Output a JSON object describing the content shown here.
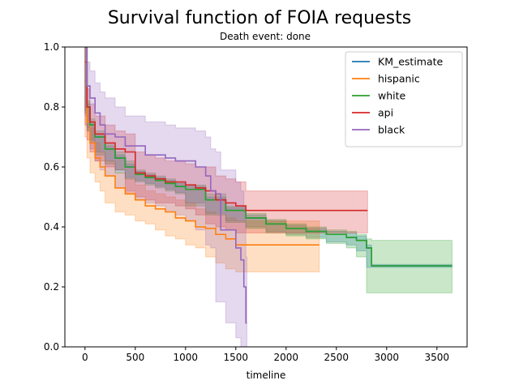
{
  "chart_data": {
    "type": "line",
    "title": "Survival function of FOIA requests",
    "subtitle": "Death event: done",
    "xlabel": "timeline",
    "ylabel": "",
    "xlim": [
      -200,
      3800
    ],
    "ylim": [
      0.0,
      1.0
    ],
    "xticks": [
      0,
      500,
      1000,
      1500,
      2000,
      2500,
      3000,
      3500
    ],
    "yticks": [
      0.0,
      0.2,
      0.4,
      0.6,
      0.8,
      1.0
    ],
    "ytick_labels": [
      "0.0",
      "0.2",
      "0.4",
      "0.6",
      "0.8",
      "1.0"
    ],
    "grid": false,
    "legend_position": "top-right",
    "series": [
      {
        "name": "KM_estimate",
        "color": "#1f77b4",
        "x": [
          0,
          20,
          50,
          100,
          200,
          300,
          400,
          500,
          600,
          700,
          800,
          900,
          1000,
          1200,
          1400,
          1600,
          1800,
          2000,
          2200,
          2400,
          2600,
          2700,
          2800,
          2850,
          3650
        ],
        "y": [
          1.0,
          0.8,
          0.74,
          0.7,
          0.66,
          0.63,
          0.6,
          0.575,
          0.565,
          0.555,
          0.545,
          0.535,
          0.525,
          0.49,
          0.455,
          0.43,
          0.41,
          0.395,
          0.385,
          0.375,
          0.365,
          0.355,
          0.33,
          0.27,
          0.27
        ],
        "ci_low": [
          1.0,
          0.79,
          0.73,
          0.69,
          0.65,
          0.62,
          0.59,
          0.565,
          0.555,
          0.545,
          0.535,
          0.525,
          0.515,
          0.48,
          0.445,
          0.42,
          0.4,
          0.385,
          0.375,
          0.365,
          0.35,
          0.34,
          0.32,
          0.265,
          0.265
        ],
        "ci_high": [
          1.0,
          0.81,
          0.75,
          0.71,
          0.67,
          0.64,
          0.61,
          0.585,
          0.575,
          0.565,
          0.555,
          0.545,
          0.535,
          0.5,
          0.465,
          0.44,
          0.42,
          0.405,
          0.395,
          0.385,
          0.38,
          0.37,
          0.34,
          0.275,
          0.275
        ]
      },
      {
        "name": "hispanic",
        "color": "#ff7f0e",
        "x": [
          0,
          20,
          50,
          100,
          150,
          200,
          300,
          400,
          500,
          600,
          700,
          800,
          900,
          1000,
          1100,
          1200,
          1300,
          1400,
          1500,
          1600,
          2330
        ],
        "y": [
          0.95,
          0.75,
          0.68,
          0.63,
          0.6,
          0.57,
          0.53,
          0.51,
          0.49,
          0.47,
          0.46,
          0.45,
          0.43,
          0.42,
          0.4,
          0.395,
          0.375,
          0.36,
          0.34,
          0.34,
          0.34
        ],
        "ci_low": [
          0.9,
          0.7,
          0.63,
          0.58,
          0.55,
          0.52,
          0.48,
          0.45,
          0.44,
          0.42,
          0.41,
          0.39,
          0.37,
          0.36,
          0.34,
          0.33,
          0.3,
          0.28,
          0.26,
          0.25,
          0.25
        ],
        "ci_high": [
          1.0,
          0.8,
          0.73,
          0.68,
          0.65,
          0.62,
          0.58,
          0.56,
          0.54,
          0.52,
          0.51,
          0.5,
          0.49,
          0.48,
          0.46,
          0.45,
          0.44,
          0.43,
          0.42,
          0.42,
          0.42
        ]
      },
      {
        "name": "white",
        "color": "#2ca02c",
        "x": [
          0,
          20,
          50,
          100,
          200,
          300,
          400,
          500,
          600,
          700,
          800,
          900,
          1000,
          1200,
          1400,
          1600,
          1800,
          2000,
          2200,
          2400,
          2600,
          2700,
          2800,
          2850,
          3650
        ],
        "y": [
          1.0,
          0.8,
          0.74,
          0.7,
          0.66,
          0.63,
          0.6,
          0.575,
          0.565,
          0.555,
          0.545,
          0.535,
          0.525,
          0.49,
          0.455,
          0.43,
          0.41,
          0.395,
          0.385,
          0.375,
          0.365,
          0.355,
          0.33,
          0.27,
          0.27
        ],
        "ci_low": [
          1.0,
          0.78,
          0.72,
          0.68,
          0.64,
          0.61,
          0.58,
          0.56,
          0.55,
          0.54,
          0.53,
          0.52,
          0.51,
          0.47,
          0.44,
          0.415,
          0.395,
          0.38,
          0.37,
          0.36,
          0.345,
          0.33,
          0.3,
          0.18,
          0.18
        ],
        "ci_high": [
          1.0,
          0.82,
          0.76,
          0.72,
          0.68,
          0.65,
          0.62,
          0.59,
          0.58,
          0.57,
          0.56,
          0.55,
          0.54,
          0.51,
          0.47,
          0.445,
          0.425,
          0.41,
          0.4,
          0.39,
          0.385,
          0.375,
          0.36,
          0.355,
          0.355
        ]
      },
      {
        "name": "api",
        "color": "#d62728",
        "x": [
          0,
          20,
          50,
          100,
          200,
          300,
          400,
          500,
          600,
          700,
          800,
          900,
          1000,
          1100,
          1200,
          1300,
          1400,
          1500,
          1600,
          1800,
          1900,
          2000,
          2800,
          2810
        ],
        "y": [
          0.95,
          0.8,
          0.75,
          0.71,
          0.68,
          0.66,
          0.65,
          0.58,
          0.57,
          0.56,
          0.55,
          0.55,
          0.54,
          0.53,
          0.52,
          0.49,
          0.48,
          0.47,
          0.455,
          0.455,
          0.455,
          0.455,
          0.455,
          0.455
        ],
        "ci_low": [
          0.9,
          0.74,
          0.69,
          0.65,
          0.62,
          0.6,
          0.59,
          0.51,
          0.5,
          0.49,
          0.48,
          0.48,
          0.47,
          0.46,
          0.44,
          0.41,
          0.4,
          0.39,
          0.38,
          0.38,
          0.38,
          0.38,
          0.38,
          0.38
        ],
        "ci_high": [
          1.0,
          0.86,
          0.81,
          0.77,
          0.74,
          0.72,
          0.71,
          0.65,
          0.64,
          0.63,
          0.62,
          0.62,
          0.61,
          0.6,
          0.6,
          0.57,
          0.56,
          0.55,
          0.52,
          0.52,
          0.52,
          0.52,
          0.52,
          0.52
        ]
      },
      {
        "name": "black",
        "color": "#9467bd",
        "x": [
          0,
          20,
          50,
          100,
          150,
          200,
          300,
          400,
          500,
          600,
          700,
          800,
          900,
          1000,
          1100,
          1200,
          1250,
          1300,
          1350,
          1400,
          1500,
          1550,
          1580,
          1600,
          1610
        ],
        "y": [
          1.0,
          0.87,
          0.83,
          0.78,
          0.74,
          0.71,
          0.7,
          0.67,
          0.67,
          0.64,
          0.64,
          0.63,
          0.62,
          0.62,
          0.6,
          0.57,
          0.52,
          0.51,
          0.39,
          0.39,
          0.33,
          0.29,
          0.2,
          0.08,
          0.08
        ],
        "ci_low": [
          0.96,
          0.77,
          0.72,
          0.66,
          0.62,
          0.59,
          0.57,
          0.53,
          0.52,
          0.49,
          0.48,
          0.47,
          0.45,
          0.44,
          0.42,
          0.39,
          0.34,
          0.33,
          0.15,
          0.15,
          0.08,
          0.03,
          0.0,
          0.0,
          0.0
        ],
        "ci_high": [
          1.0,
          0.95,
          0.92,
          0.88,
          0.85,
          0.83,
          0.8,
          0.77,
          0.77,
          0.75,
          0.75,
          0.74,
          0.73,
          0.73,
          0.72,
          0.7,
          0.66,
          0.65,
          0.59,
          0.59,
          0.55,
          0.52,
          0.45,
          0.3,
          0.3
        ]
      }
    ]
  }
}
